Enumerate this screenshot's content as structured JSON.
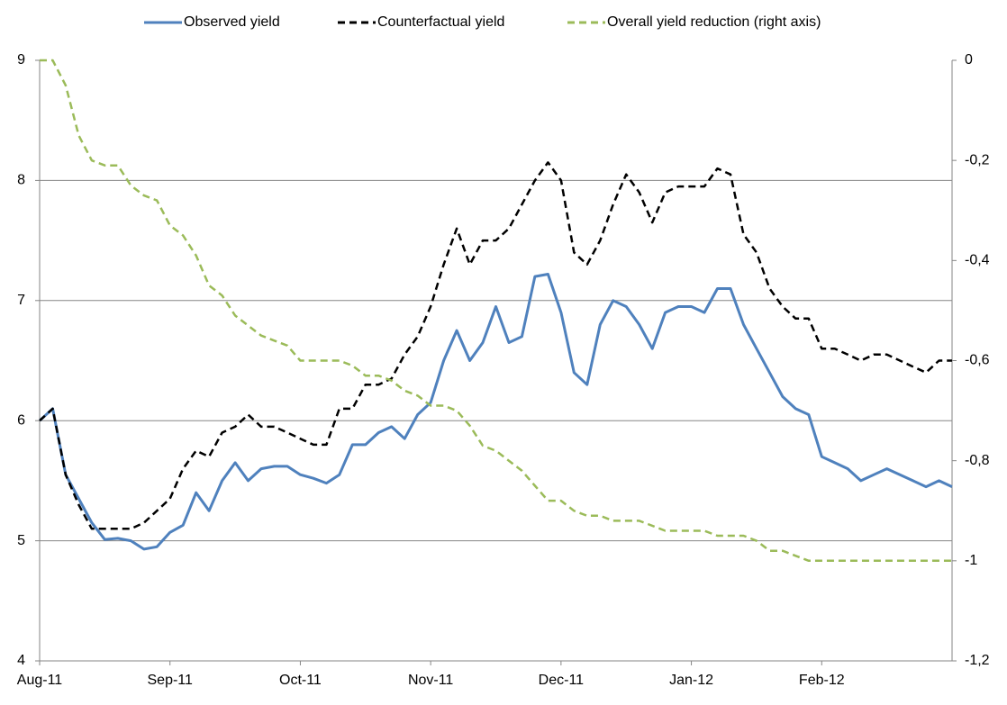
{
  "chart_data": {
    "type": "line",
    "categories": [
      "Aug-11",
      null,
      null,
      null,
      null,
      null,
      null,
      null,
      null,
      null,
      "Sep-11",
      null,
      null,
      null,
      null,
      null,
      null,
      null,
      null,
      null,
      "Oct-11",
      null,
      null,
      null,
      null,
      null,
      null,
      null,
      null,
      null,
      "Nov-11",
      null,
      null,
      null,
      null,
      null,
      null,
      null,
      null,
      null,
      "Dec-11",
      null,
      null,
      null,
      null,
      null,
      null,
      null,
      null,
      null,
      "Jan-12",
      null,
      null,
      null,
      null,
      null,
      null,
      null,
      null,
      null,
      "Feb-12",
      null,
      null,
      null,
      null,
      null,
      null,
      null,
      null,
      null,
      null
    ],
    "series": [
      {
        "name": "Observed yield",
        "color": "#4f81bd",
        "dash": "solid",
        "axis": "y",
        "values": [
          6.0,
          6.1,
          5.55,
          5.35,
          5.15,
          5.01,
          5.02,
          5.0,
          4.93,
          4.95,
          5.07,
          5.13,
          5.4,
          5.25,
          5.5,
          5.65,
          5.5,
          5.6,
          5.62,
          5.62,
          5.55,
          5.52,
          5.48,
          5.55,
          5.8,
          5.8,
          5.9,
          5.95,
          5.85,
          6.05,
          6.15,
          6.5,
          6.75,
          6.5,
          6.65,
          6.95,
          6.65,
          6.7,
          7.2,
          7.22,
          6.9,
          6.4,
          6.3,
          6.8,
          7.0,
          6.95,
          6.8,
          6.6,
          6.9,
          6.95,
          6.95,
          6.9,
          7.1,
          7.1,
          6.8,
          6.6,
          6.4,
          6.2,
          6.1,
          6.05,
          5.7,
          5.65,
          5.6,
          5.5,
          5.55,
          5.6,
          5.55,
          5.5,
          5.45,
          5.5,
          5.45
        ]
      },
      {
        "name": "Counterfactual yield",
        "color": "#000000",
        "dash": "dashed",
        "axis": "y",
        "values": [
          6.0,
          6.1,
          5.55,
          5.3,
          5.1,
          5.1,
          5.1,
          5.1,
          5.15,
          5.25,
          5.35,
          5.6,
          5.75,
          5.7,
          5.9,
          5.95,
          6.05,
          5.95,
          5.95,
          5.9,
          5.85,
          5.8,
          5.8,
          6.1,
          6.1,
          6.3,
          6.3,
          6.35,
          6.55,
          6.7,
          6.95,
          7.3,
          7.6,
          7.3,
          7.5,
          7.5,
          7.6,
          7.8,
          8.0,
          8.15,
          8.0,
          7.4,
          7.3,
          7.5,
          7.8,
          8.05,
          7.9,
          7.65,
          7.9,
          7.95,
          7.95,
          7.95,
          8.1,
          8.05,
          7.55,
          7.4,
          7.1,
          6.95,
          6.85,
          6.85,
          6.6,
          6.6,
          6.55,
          6.5,
          6.55,
          6.55,
          6.5,
          6.45,
          6.4,
          6.5,
          6.5
        ]
      },
      {
        "name": "Overall yield reduction (right axis)",
        "color": "#9bbb59",
        "dash": "dashed",
        "axis": "y2",
        "values": [
          0,
          0,
          -0.05,
          -0.15,
          -0.2,
          -0.21,
          -0.21,
          -0.25,
          -0.27,
          -0.28,
          -0.33,
          -0.35,
          -0.39,
          -0.45,
          -0.47,
          -0.51,
          -0.53,
          -0.55,
          -0.56,
          -0.57,
          -0.6,
          -0.6,
          -0.6,
          -0.6,
          -0.61,
          -0.63,
          -0.63,
          -0.64,
          -0.66,
          -0.67,
          -0.69,
          -0.69,
          -0.7,
          -0.73,
          -0.77,
          -0.78,
          -0.8,
          -0.82,
          -0.85,
          -0.88,
          -0.88,
          -0.9,
          -0.91,
          -0.91,
          -0.92,
          -0.92,
          -0.92,
          -0.93,
          -0.94,
          -0.94,
          -0.94,
          -0.94,
          -0.95,
          -0.95,
          -0.95,
          -0.96,
          -0.98,
          -0.98,
          -0.99,
          -1.0,
          -1.0,
          -1.0,
          -1.0,
          -1.0,
          -1.0,
          -1.0,
          -1.0,
          -1.0,
          -1.0,
          -1.0,
          -1.0
        ]
      }
    ],
    "ylim": [
      4,
      9
    ],
    "yticks": [
      4,
      5,
      6,
      7,
      8,
      9
    ],
    "y2lim": [
      -1.2,
      0
    ],
    "y2ticks": [
      0,
      {
        "value": -0.2,
        "label": "-0,2"
      },
      {
        "value": -0.4,
        "label": "-0,4"
      },
      {
        "value": -0.6,
        "label": "-0,6"
      },
      {
        "value": -0.8,
        "label": "-0,8"
      },
      {
        "value": -1,
        "label": "-1"
      },
      {
        "value": -1.2,
        "label": "-1,2"
      }
    ],
    "grid": true,
    "legend": "top"
  }
}
